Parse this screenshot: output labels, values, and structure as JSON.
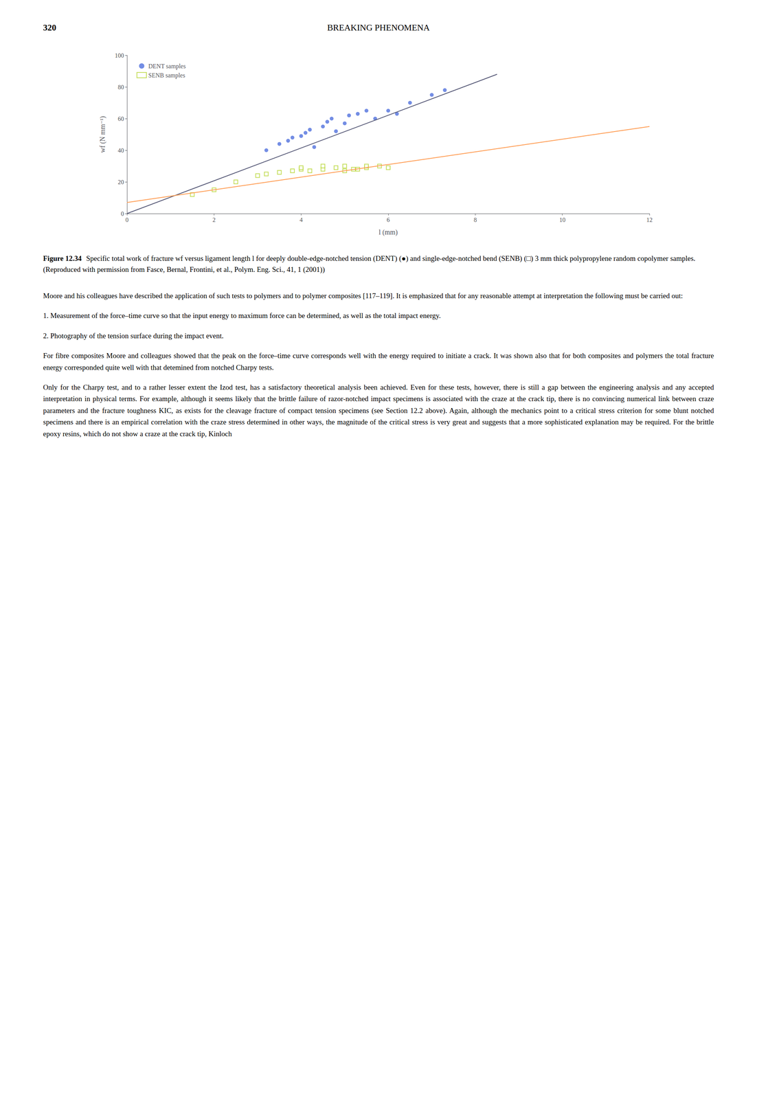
{
  "page_number": "320",
  "page_header": "BREAKING PHENOMENA",
  "caption_label": "Figure 12.34",
  "caption": "Specific total work of fracture wf versus ligament length l for deeply double-edge-notched tension (DENT) (●) and single-edge-notched bend (SENB) (□) 3 mm thick polypropylene random copolymer samples. (Reproduced with permission from Fasce, Bernal, Frontini, et al., Polym. Eng. Sci., 41, 1 (2001))",
  "body": [
    "Moore and his colleagues have described the application of such tests to polymers and to polymer composites [117–119]. It is emphasized that for any reasonable attempt at interpretation the following must be carried out:",
    "1.  Measurement of the force–time curve so that the input energy to maximum force can be determined, as well as the total impact energy.",
    "2.  Photography of the tension surface during the impact event.",
    "For fibre composites Moore and colleagues showed that the peak on the force–time curve corresponds well with the energy required to initiate a crack. It was shown also that for both composites and polymers the total fracture energy corresponded quite well with that detemined from notched Charpy tests.",
    "Only for the Charpy test, and to a rather lesser extent the Izod test, has a satisfactory theoretical analysis been achieved. Even for these tests, however, there is still a gap between the engineering analysis and any accepted interpretation in physical terms. For example, although it seems likely that the brittle failure of razor-notched impact specimens is associated with the craze at the crack tip, there is no convincing numerical link between craze parameters and the fracture toughness KIC, as exists for the cleavage fracture of compact tension specimens (see Section 12.2 above). Again, although the mechanics point to a critical stress criterion for some blunt notched specimens and there is an empirical correlation with the craze stress determined in other ways, the magnitude of the critical stress is very great and suggests that a more sophisticated explanation may be required. For the brittle epoxy resins, which do not show a craze at the crack tip, Kinloch"
  ],
  "chart_data": {
    "type": "scatter",
    "xlabel": "l (mm)",
    "ylabel": "wf (N mm⁻¹)",
    "xlim": [
      0,
      12
    ],
    "ylim": [
      0,
      100
    ],
    "xticks": [
      0,
      2,
      4,
      6,
      8,
      10,
      12
    ],
    "yticks": [
      0,
      20,
      40,
      60,
      80,
      100
    ],
    "grid": false,
    "legend": "upper left",
    "series": [
      {
        "name": "DENT samples",
        "type": "scatter",
        "marker": "circle",
        "x": [
          3.2,
          3.5,
          3.7,
          3.8,
          4.0,
          4.1,
          4.2,
          4.3,
          4.5,
          4.6,
          4.7,
          4.8,
          5.0,
          5.1,
          5.3,
          5.5,
          5.7,
          6.0,
          6.2,
          6.5,
          7.0,
          7.3
        ],
        "values": [
          40,
          44,
          46,
          48,
          49,
          51,
          53,
          42,
          55,
          58,
          60,
          52,
          57,
          62,
          63,
          65,
          60,
          65,
          63,
          70,
          75,
          78
        ]
      },
      {
        "name": "SENB samples",
        "type": "scatter",
        "marker": "open square",
        "x": [
          1.5,
          2.0,
          2.5,
          3.0,
          3.2,
          3.5,
          3.8,
          4.0,
          4.0,
          4.2,
          4.5,
          4.5,
          4.8,
          5.0,
          5.0,
          5.2,
          5.3,
          5.5,
          5.5,
          5.8,
          6.0
        ],
        "values": [
          12,
          15,
          20,
          24,
          25,
          26,
          27,
          28,
          29,
          27,
          28,
          30,
          29,
          30,
          27,
          28,
          28,
          29,
          30,
          30,
          29
        ]
      },
      {
        "type": "line",
        "line_style": "solid",
        "x": [
          0.0,
          8.5
        ],
        "values": [
          0.0,
          88
        ]
      },
      {
        "type": "line",
        "line_style": "solid",
        "x": [
          0.0,
          12.0
        ],
        "values": [
          7.0,
          55
        ]
      }
    ]
  }
}
